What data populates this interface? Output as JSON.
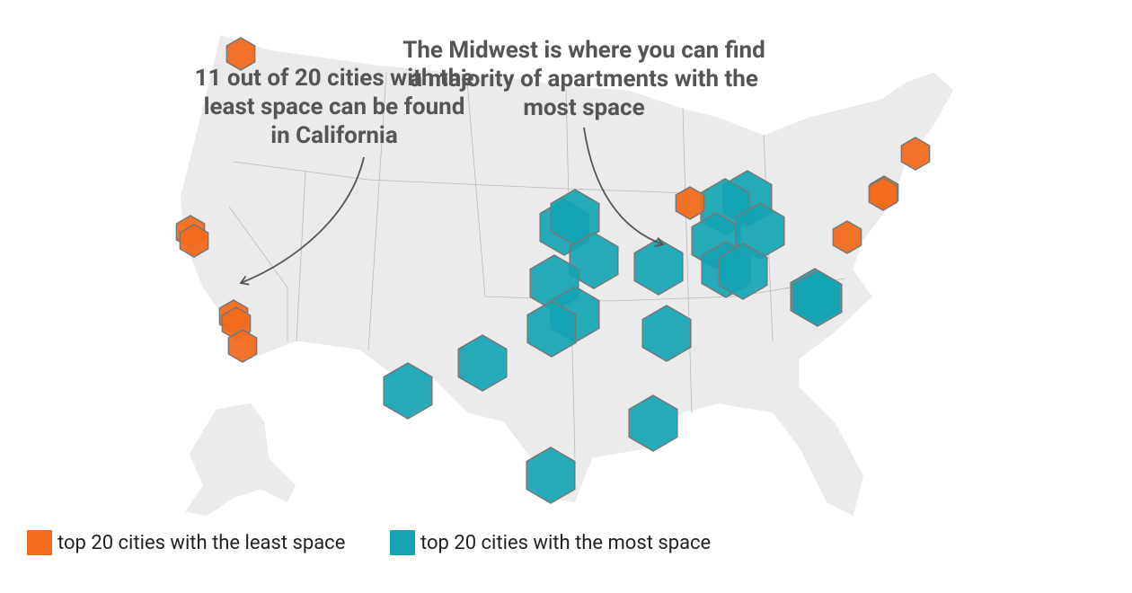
{
  "annotations": [
    {
      "lines": [
        "11 out of 20 cities with the",
        "least space can be found",
        "in California"
      ]
    },
    {
      "lines": [
        "The Midwest is where you can find",
        "a majority of apartments with the",
        "most space"
      ]
    }
  ],
  "legend": [
    {
      "label": "top 20 cities with the least space",
      "color": "#f26b1d"
    },
    {
      "label": "top 20 cities with the most space",
      "color": "#14a4b2"
    }
  ]
}
